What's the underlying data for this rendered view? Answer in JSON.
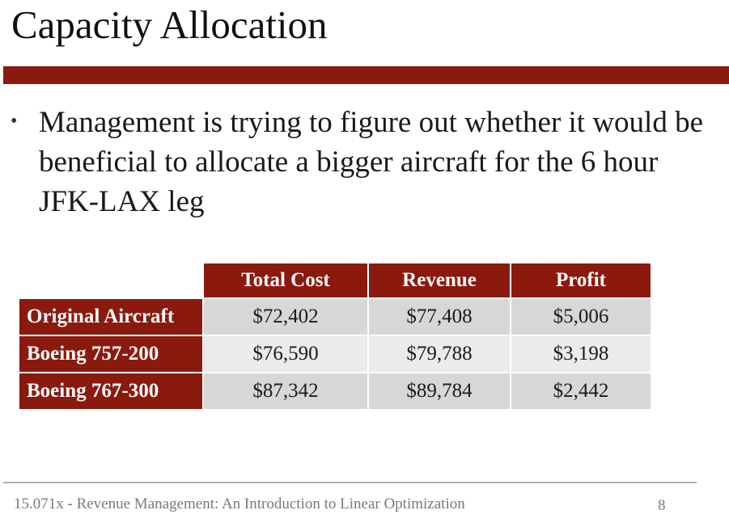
{
  "slide": {
    "title": "Capacity Allocation",
    "bullet_symbol": "•",
    "bullet_text": "Management is trying to figure out whether it would be beneficial to allocate a bigger aircraft for the 6 hour JFK-LAX leg"
  },
  "table": {
    "headers": [
      "Total Cost",
      "Revenue",
      "Profit"
    ],
    "rows": [
      {
        "label": "Original Aircraft",
        "values": [
          "$72,402",
          "$77,408",
          "$5,006"
        ]
      },
      {
        "label": "Boeing 757-200",
        "values": [
          "$76,590",
          "$79,788",
          "$3,198"
        ]
      },
      {
        "label": "Boeing 767-300",
        "values": [
          "$87,342",
          "$89,784",
          "$2,442"
        ]
      }
    ]
  },
  "footer": {
    "text": "15.071x - Revenue Management: An Introduction to Linear Optimization",
    "page_number": "8"
  },
  "colors": {
    "accent": "#8b1a0e",
    "row_light": "#ebebeb",
    "row_dark": "#d7d7d7"
  }
}
